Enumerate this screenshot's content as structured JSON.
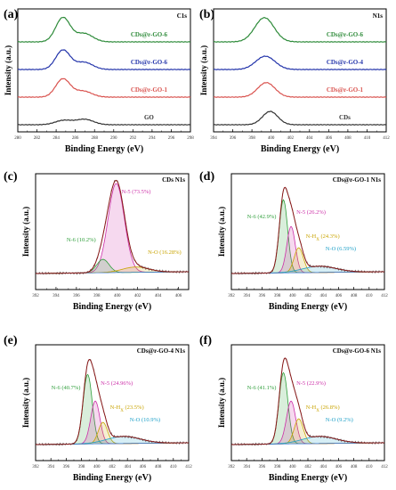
{
  "chart_data": [
    {
      "panel": "(a)",
      "type": "line",
      "title": "C1s",
      "xlabel": "Binding Energy (eV)",
      "ylabel": "Intensity (a.u.)",
      "x_ticks": [
        "280",
        "282",
        "284",
        "286",
        "288",
        "290",
        "292",
        "294",
        "296",
        "298"
      ],
      "xlim": [
        280,
        298
      ],
      "series": [
        {
          "name": "GO",
          "color": "#333333",
          "peaks": [
            {
              "center": 284.8,
              "height": 0.18,
              "width": 0.9
            },
            {
              "center": 287.0,
              "height": 0.22,
              "width": 0.9
            }
          ]
        },
        {
          "name": "CDs@r-GO-1",
          "color": "#d9534f",
          "peaks": [
            {
              "center": 284.7,
              "height": 0.75,
              "width": 0.75
            },
            {
              "center": 286.8,
              "height": 0.25,
              "width": 0.9
            }
          ]
        },
        {
          "name": "CDs@r-GO-6",
          "color": "#2233aa",
          "peaks": [
            {
              "center": 284.7,
              "height": 0.8,
              "width": 0.75
            },
            {
              "center": 286.9,
              "height": 0.3,
              "width": 0.9
            }
          ]
        },
        {
          "name": "CDs@r-GO-6",
          "color": "#2e8b3a",
          "peaks": [
            {
              "center": 284.7,
              "height": 1.0,
              "width": 0.75
            },
            {
              "center": 286.9,
              "height": 0.35,
              "width": 0.9
            }
          ]
        }
      ]
    },
    {
      "panel": "(b)",
      "type": "line",
      "title": "N1s",
      "xlabel": "Binding Energy (eV)",
      "ylabel": "Intensity (a.u.)",
      "x_ticks": [
        "394",
        "396",
        "398",
        "400",
        "402",
        "404",
        "406",
        "408",
        "410",
        "412"
      ],
      "xlim": [
        394,
        412
      ],
      "series": [
        {
          "name": "CDs",
          "color": "#333333",
          "peaks": [
            {
              "center": 399.9,
              "height": 0.55,
              "width": 0.8
            }
          ]
        },
        {
          "name": "CDs@r-GO-1",
          "color": "#d9534f",
          "peaks": [
            {
              "center": 399.5,
              "height": 0.6,
              "width": 0.9
            }
          ]
        },
        {
          "name": "CDs@r-GO-4",
          "color": "#2233aa",
          "peaks": [
            {
              "center": 399.4,
              "height": 0.55,
              "width": 1.0
            }
          ]
        },
        {
          "name": "CDs@r-GO-6",
          "color": "#2e8b3a",
          "peaks": [
            {
              "center": 399.3,
              "height": 1.0,
              "width": 1.0
            }
          ]
        }
      ]
    },
    {
      "panel": "(c)",
      "type": "area",
      "title": "CDs N1s",
      "xlabel": "Binding Energy (eV)",
      "ylabel": "Intensity (a.u.)",
      "x_ticks": [
        "392",
        "394",
        "396",
        "398",
        "400",
        "402",
        "404",
        "406"
      ],
      "xlim": [
        392,
        407
      ],
      "components": [
        {
          "label": "N-5 (73.5%)",
          "color": "#cc2fa8",
          "center": 399.9,
          "height": 1.0,
          "width": 0.8
        },
        {
          "label": "N-6 (10.2%)",
          "color": "#2e9e3a",
          "center": 398.6,
          "height": 0.15,
          "width": 0.6
        },
        {
          "label": "N-O (16.28%)",
          "color": "#c9a400",
          "center": 401.8,
          "height": 0.06,
          "width": 1.3
        }
      ]
    },
    {
      "panel": "(d)",
      "type": "area",
      "title": "CDs@r-GO-1 N1s",
      "xlabel": "Binding Energy (eV)",
      "ylabel": "Intensity (a.u.)",
      "x_ticks": [
        "392",
        "394",
        "396",
        "398",
        "400",
        "402",
        "404",
        "406",
        "408",
        "410",
        "412"
      ],
      "xlim": [
        392,
        412
      ],
      "components": [
        {
          "label": "N-6 (42.9%)",
          "color": "#2e9e3a",
          "center": 398.8,
          "height": 0.82,
          "width": 0.55
        },
        {
          "label": "N-5 (26.2%)",
          "color": "#cc2fa8",
          "center": 399.8,
          "height": 0.52,
          "width": 0.55
        },
        {
          "label": "N-HX (24.3%)",
          "color": "#c9a400",
          "center": 400.8,
          "height": 0.28,
          "width": 0.6
        },
        {
          "label": "N-O (6.59%)",
          "color": "#1ea0c8",
          "center": 403.5,
          "height": 0.07,
          "width": 2.2
        }
      ]
    },
    {
      "panel": "(e)",
      "type": "area",
      "title": "CDs@r-GO-4 N1s",
      "xlabel": "Binding Energy (eV)",
      "ylabel": "Intensity (a.u.)",
      "x_ticks": [
        "392",
        "394",
        "396",
        "398",
        "400",
        "402",
        "404",
        "406",
        "408",
        "410",
        "412"
      ],
      "xlim": [
        392,
        412
      ],
      "components": [
        {
          "label": "N-6 (40.7%)",
          "color": "#2e9e3a",
          "center": 398.8,
          "height": 0.78,
          "width": 0.6
        },
        {
          "label": "N-5 (24.96%)",
          "color": "#cc2fa8",
          "center": 399.8,
          "height": 0.48,
          "width": 0.6
        },
        {
          "label": "N-HX (23.5%)",
          "color": "#c9a400",
          "center": 400.8,
          "height": 0.24,
          "width": 0.6
        },
        {
          "label": "N-O (10.9%)",
          "color": "#1ea0c8",
          "center": 403.5,
          "height": 0.08,
          "width": 2.2
        }
      ]
    },
    {
      "panel": "(f)",
      "type": "area",
      "title": "CDs@r-GO-6 N1s",
      "xlabel": "Binding Energy (eV)",
      "ylabel": "Intensity (a.u.)",
      "x_ticks": [
        "392",
        "394",
        "396",
        "398",
        "400",
        "402",
        "404",
        "406",
        "408",
        "410",
        "412"
      ],
      "xlim": [
        392,
        412
      ],
      "components": [
        {
          "label": "N-6 (41.1%)",
          "color": "#2e9e3a",
          "center": 398.8,
          "height": 0.8,
          "width": 0.58
        },
        {
          "label": "N-5 (22.9%)",
          "color": "#cc2fa8",
          "center": 399.8,
          "height": 0.48,
          "width": 0.6
        },
        {
          "label": "N-HX (26.8%)",
          "color": "#c9a400",
          "center": 400.8,
          "height": 0.28,
          "width": 0.6
        },
        {
          "label": "N-O (9.2%)",
          "color": "#1ea0c8",
          "center": 403.5,
          "height": 0.08,
          "width": 2.2
        }
      ]
    }
  ]
}
